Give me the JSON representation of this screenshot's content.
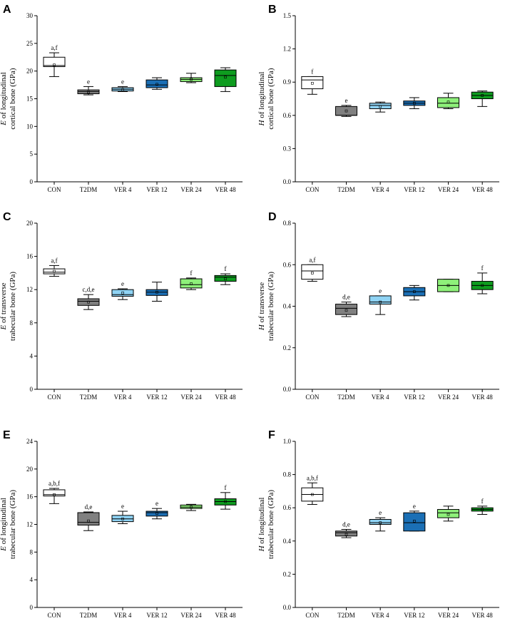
{
  "chart_data": [
    {
      "panel": "A",
      "type": "box",
      "ylabel_italic": "E",
      "ylabel_rest": " of longitudinal",
      "ylabel_line2": "cortical bone (GPa)",
      "ylim": [
        0,
        30
      ],
      "yticks": [
        "0",
        "5",
        "10",
        "15",
        "20",
        "25",
        "30"
      ],
      "categories": [
        "CON",
        "T2DM",
        "VER 4",
        "VER 12",
        "VER 24",
        "VER 48"
      ],
      "boxes": [
        {
          "min": 19.0,
          "q1": 20.8,
          "median": 21.0,
          "q3": 22.5,
          "max": 23.3,
          "mean": 21.1,
          "sig": "a,f"
        },
        {
          "min": 15.7,
          "q1": 15.9,
          "median": 16.3,
          "q3": 16.6,
          "max": 17.2,
          "mean": 16.2,
          "sig": "e"
        },
        {
          "min": 16.3,
          "q1": 16.4,
          "median": 16.7,
          "q3": 17.0,
          "max": 17.2,
          "mean": 16.6,
          "sig": "e"
        },
        {
          "min": 16.7,
          "q1": 17.0,
          "median": 17.5,
          "q3": 18.4,
          "max": 18.8,
          "mean": 17.6,
          "sig": ""
        },
        {
          "min": 17.9,
          "q1": 18.1,
          "median": 18.5,
          "q3": 18.8,
          "max": 19.6,
          "mean": 18.5,
          "sig": ""
        },
        {
          "min": 16.3,
          "q1": 17.2,
          "median": 19.2,
          "q3": 20.2,
          "max": 20.6,
          "mean": 18.9,
          "sig": ""
        }
      ]
    },
    {
      "panel": "B",
      "type": "box",
      "ylabel_italic": "H",
      "ylabel_rest": " of longitudinal",
      "ylabel_line2": "cortical bone (GPa)",
      "ylim": [
        0,
        1.5
      ],
      "yticks": [
        "0.0",
        "0.3",
        "0.6",
        "0.9",
        "1.2",
        "1.5"
      ],
      "categories": [
        "CON",
        "T2DM",
        "VER 4",
        "VER 12",
        "VER 24",
        "VER 48"
      ],
      "boxes": [
        {
          "min": 0.79,
          "q1": 0.84,
          "median": 0.92,
          "q3": 0.95,
          "max": 0.95,
          "mean": 0.89,
          "sig": "f"
        },
        {
          "min": 0.59,
          "q1": 0.6,
          "median": 0.6,
          "q3": 0.68,
          "max": 0.69,
          "mean": 0.64,
          "sig": "e"
        },
        {
          "min": 0.63,
          "q1": 0.66,
          "median": 0.69,
          "q3": 0.71,
          "max": 0.72,
          "mean": 0.68,
          "sig": ""
        },
        {
          "min": 0.66,
          "q1": 0.69,
          "median": 0.71,
          "q3": 0.73,
          "max": 0.76,
          "mean": 0.71,
          "sig": ""
        },
        {
          "min": 0.66,
          "q1": 0.67,
          "median": 0.71,
          "q3": 0.76,
          "max": 0.8,
          "mean": 0.72,
          "sig": ""
        },
        {
          "min": 0.68,
          "q1": 0.75,
          "median": 0.78,
          "q3": 0.81,
          "max": 0.82,
          "mean": 0.78,
          "sig": ""
        }
      ]
    },
    {
      "panel": "C",
      "type": "box",
      "ylabel_italic": "E",
      "ylabel_rest": " of transverse",
      "ylabel_line2": "trabecular bone (GPa)",
      "ylim": [
        0,
        20
      ],
      "yticks": [
        "0",
        "4",
        "8",
        "12",
        "16",
        "20"
      ],
      "categories": [
        "CON",
        "T2DM",
        "VER 4",
        "VER 12",
        "VER 24",
        "VER 48"
      ],
      "boxes": [
        {
          "min": 13.6,
          "q1": 13.9,
          "median": 14.1,
          "q3": 14.5,
          "max": 14.9,
          "mean": 14.2,
          "sig": "a,f"
        },
        {
          "min": 9.6,
          "q1": 10.1,
          "median": 10.6,
          "q3": 10.9,
          "max": 11.4,
          "mean": 10.5,
          "sig": "c,d,e"
        },
        {
          "min": 10.8,
          "q1": 11.2,
          "median": 11.4,
          "q3": 12.0,
          "max": 12.1,
          "mean": 11.6,
          "sig": "e"
        },
        {
          "min": 10.6,
          "q1": 11.3,
          "median": 11.7,
          "q3": 12.0,
          "max": 12.9,
          "mean": 11.7,
          "sig": ""
        },
        {
          "min": 12.0,
          "q1": 12.2,
          "median": 12.6,
          "q3": 13.3,
          "max": 13.4,
          "mean": 12.7,
          "sig": "f"
        },
        {
          "min": 12.6,
          "q1": 13.0,
          "median": 13.5,
          "q3": 13.7,
          "max": 13.9,
          "mean": 13.3,
          "sig": "f"
        }
      ]
    },
    {
      "panel": "D",
      "type": "box",
      "ylabel_italic": "H",
      "ylabel_rest": " of transverse",
      "ylabel_line2": "trabecular bone (GPa)",
      "ylim": [
        0,
        0.8
      ],
      "yticks": [
        "0.0",
        "0.2",
        "0.4",
        "0.6",
        "0.8"
      ],
      "categories": [
        "CON",
        "T2DM",
        "VER 4",
        "VER 12",
        "VER 24",
        "VER 48"
      ],
      "boxes": [
        {
          "min": 0.52,
          "q1": 0.53,
          "median": 0.57,
          "q3": 0.6,
          "max": 0.6,
          "mean": 0.56,
          "sig": "a,f"
        },
        {
          "min": 0.35,
          "q1": 0.36,
          "median": 0.39,
          "q3": 0.41,
          "max": 0.42,
          "mean": 0.38,
          "sig": "d,e"
        },
        {
          "min": 0.36,
          "q1": 0.41,
          "median": 0.42,
          "q3": 0.45,
          "max": 0.45,
          "mean": 0.42,
          "sig": "e"
        },
        {
          "min": 0.43,
          "q1": 0.45,
          "median": 0.47,
          "q3": 0.49,
          "max": 0.5,
          "mean": 0.47,
          "sig": ""
        },
        {
          "min": 0.47,
          "q1": 0.47,
          "median": 0.5,
          "q3": 0.53,
          "max": 0.53,
          "mean": 0.5,
          "sig": ""
        },
        {
          "min": 0.46,
          "q1": 0.48,
          "median": 0.5,
          "q3": 0.52,
          "max": 0.56,
          "mean": 0.5,
          "sig": "f"
        }
      ]
    },
    {
      "panel": "E",
      "type": "box",
      "ylabel_italic": "E",
      "ylabel_rest": " of longitudinal",
      "ylabel_line2": "trabecular bone (GPa)",
      "ylim": [
        0,
        24
      ],
      "yticks": [
        "0",
        "4",
        "8",
        "12",
        "16",
        "20",
        "24"
      ],
      "categories": [
        "CON",
        "T2DM",
        "VER 4",
        "VER 12",
        "VER 24",
        "VER 48"
      ],
      "boxes": [
        {
          "min": 15.0,
          "q1": 16.1,
          "median": 16.3,
          "q3": 17.0,
          "max": 17.2,
          "mean": 16.3,
          "sig": "a,b,f"
        },
        {
          "min": 11.1,
          "q1": 11.9,
          "median": 12.3,
          "q3": 13.7,
          "max": 13.8,
          "mean": 12.5,
          "sig": "d,e"
        },
        {
          "min": 12.1,
          "q1": 12.4,
          "median": 12.8,
          "q3": 13.3,
          "max": 13.9,
          "mean": 12.8,
          "sig": "e"
        },
        {
          "min": 12.8,
          "q1": 13.2,
          "median": 13.7,
          "q3": 13.9,
          "max": 14.3,
          "mean": 13.6,
          "sig": "e"
        },
        {
          "min": 14.0,
          "q1": 14.3,
          "median": 14.5,
          "q3": 14.8,
          "max": 14.9,
          "mean": 14.5,
          "sig": ""
        },
        {
          "min": 14.2,
          "q1": 14.8,
          "median": 15.3,
          "q3": 15.7,
          "max": 16.6,
          "mean": 15.3,
          "sig": "f"
        }
      ]
    },
    {
      "panel": "F",
      "type": "box",
      "ylabel_italic": "H",
      "ylabel_rest": " of longitudinal",
      "ylabel_line2": "trabecular bone (GPa)",
      "ylim": [
        0,
        1.0
      ],
      "yticks": [
        "0.0",
        "0.2",
        "0.4",
        "0.6",
        "0.8",
        "1.0"
      ],
      "categories": [
        "CON",
        "T2DM",
        "VER 4",
        "VER 12",
        "VER 24",
        "VER 48"
      ],
      "boxes": [
        {
          "min": 0.62,
          "q1": 0.64,
          "median": 0.68,
          "q3": 0.72,
          "max": 0.75,
          "mean": 0.68,
          "sig": "a,b,f"
        },
        {
          "min": 0.42,
          "q1": 0.43,
          "median": 0.45,
          "q3": 0.46,
          "max": 0.47,
          "mean": 0.44,
          "sig": "d,e"
        },
        {
          "min": 0.46,
          "q1": 0.5,
          "median": 0.51,
          "q3": 0.53,
          "max": 0.54,
          "mean": 0.51,
          "sig": "e"
        },
        {
          "min": 0.46,
          "q1": 0.46,
          "median": 0.51,
          "q3": 0.57,
          "max": 0.58,
          "mean": 0.52,
          "sig": "e"
        },
        {
          "min": 0.52,
          "q1": 0.54,
          "median": 0.57,
          "q3": 0.59,
          "max": 0.61,
          "mean": 0.56,
          "sig": ""
        },
        {
          "min": 0.56,
          "q1": 0.58,
          "median": 0.59,
          "q3": 0.6,
          "max": 0.61,
          "mean": 0.59,
          "sig": "f"
        }
      ]
    }
  ],
  "colors": {
    "CON": "#ffffff",
    "T2DM": "#808080",
    "VER 4": "#8fd3f4",
    "VER 12": "#1b6fb5",
    "VER 24": "#8ef07a",
    "VER 48": "#0e9c1f"
  }
}
